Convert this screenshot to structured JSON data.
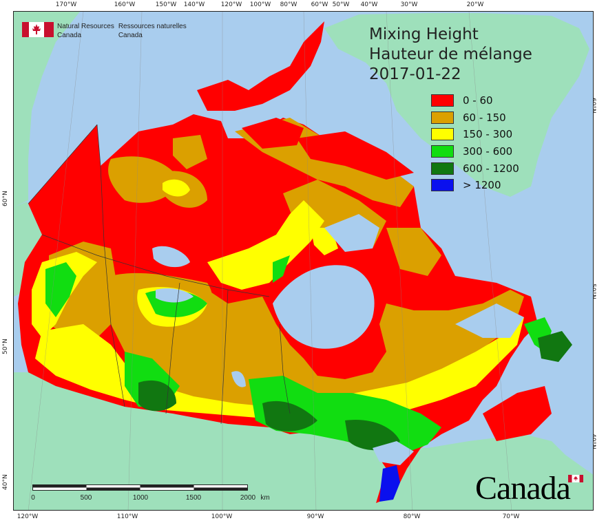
{
  "title": {
    "line1": "Mixing Height",
    "line2": "Hauteur de mélange",
    "date": "2017-01-22"
  },
  "agency": {
    "en_line1": "Natural Resources",
    "en_line2": "Canada",
    "fr_line1": "Ressources naturelles",
    "fr_line2": "Canada"
  },
  "wordmark": "Canada",
  "legend": [
    {
      "label": "0 - 60",
      "color": "#ff0000"
    },
    {
      "label": "60 - 150",
      "color": "#dba000"
    },
    {
      "label": "150 - 300",
      "color": "#ffff00"
    },
    {
      "label": "300 - 600",
      "color": "#11dd11"
    },
    {
      "label": "600 - 1200",
      "color": "#117711"
    },
    {
      "label": "> 1200",
      "color": "#0a10ee"
    }
  ],
  "graticule": {
    "top_labels": [
      "170°W",
      "160°W",
      "150°W",
      "140°W",
      "120°W",
      "100°W",
      "80°W",
      "60°W",
      "50°W",
      "40°W",
      "30°W",
      "20°W"
    ],
    "bottom_labels": [
      "120°W",
      "110°W",
      "100°W",
      "90°W",
      "80°W",
      "70°W"
    ],
    "left_labels": [
      "60°N",
      "50°N",
      "40°N"
    ],
    "right_labels": [
      "60°N",
      "50°N",
      "40°N"
    ]
  },
  "scalebar": {
    "labels": [
      "0",
      "500",
      "1000",
      "1500",
      "2000",
      "km"
    ]
  },
  "colors": {
    "ocean": "#a9cdee",
    "land_other": "#9ee0bb",
    "lakes": "#a9cdee"
  }
}
